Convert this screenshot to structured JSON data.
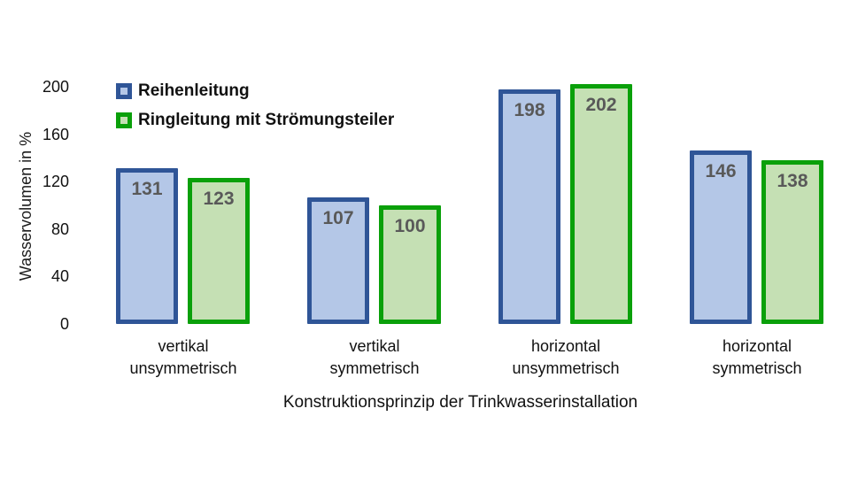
{
  "chart_data": {
    "type": "bar",
    "title": "",
    "xlabel": "Konstruktionsprinzip der Trinkwasserinstallation",
    "ylabel": "Wasservolumen in %",
    "ylim": [
      0,
      200
    ],
    "yticks": [
      0,
      40,
      80,
      120,
      160,
      200
    ],
    "grid": false,
    "legend_position": "top-left",
    "categories": [
      "vertikal\nunsymmetrisch",
      "vertikal\nsymmetrisch",
      "horizontal\nunsymmetrisch",
      "horizontal\nsymmetrisch"
    ],
    "series": [
      {
        "name": "Reihenleitung",
        "values": [
          131,
          107,
          198,
          146
        ],
        "fill_color": "#B4C7E7",
        "border_color": "#2F5597"
      },
      {
        "name": "Ringleitung mit Strömungsteiler",
        "values": [
          123,
          100,
          202,
          138
        ],
        "fill_color": "#C5E0B4",
        "border_color": "#0AA00A"
      }
    ],
    "value_label_color": "#595959"
  }
}
